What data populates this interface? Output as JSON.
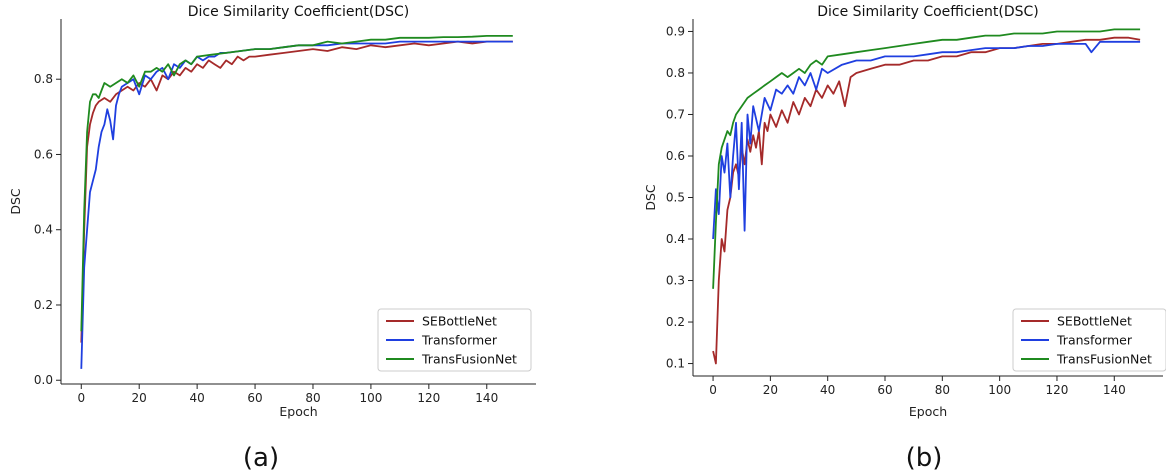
{
  "chart_data": [
    {
      "type": "line",
      "title": "Dice Similarity Coefficient(DSC)",
      "xlabel": "Epoch",
      "ylabel": "DSC",
      "caption": "(a)",
      "xlim": [
        -7,
        157
      ],
      "ylim": [
        -0.01,
        0.96
      ],
      "xticks": [
        0,
        20,
        40,
        60,
        80,
        100,
        120,
        140
      ],
      "yticks": [
        0.0,
        0.2,
        0.4,
        0.6,
        0.8
      ],
      "ytick_labels": [
        "0.0",
        "0.2",
        "0.4",
        "0.6",
        "0.8"
      ],
      "grid": false,
      "legend_position": "lower-right",
      "series": [
        {
          "name": "SEBottleNet",
          "color": "#a52a2a",
          "x": [
            0,
            1,
            2,
            3,
            4,
            5,
            6,
            8,
            10,
            12,
            14,
            16,
            18,
            20,
            22,
            24,
            26,
            28,
            30,
            32,
            34,
            36,
            38,
            40,
            42,
            44,
            46,
            48,
            50,
            52,
            54,
            56,
            58,
            60,
            65,
            70,
            75,
            80,
            85,
            90,
            95,
            100,
            105,
            110,
            115,
            120,
            125,
            130,
            135,
            140,
            145,
            149
          ],
          "y": [
            0.1,
            0.4,
            0.62,
            0.68,
            0.71,
            0.73,
            0.74,
            0.75,
            0.74,
            0.76,
            0.77,
            0.78,
            0.77,
            0.79,
            0.78,
            0.8,
            0.77,
            0.81,
            0.8,
            0.82,
            0.81,
            0.83,
            0.82,
            0.84,
            0.83,
            0.85,
            0.84,
            0.83,
            0.85,
            0.84,
            0.86,
            0.85,
            0.86,
            0.86,
            0.865,
            0.87,
            0.875,
            0.88,
            0.875,
            0.885,
            0.88,
            0.89,
            0.885,
            0.89,
            0.895,
            0.89,
            0.895,
            0.9,
            0.895,
            0.9,
            0.9,
            0.9
          ]
        },
        {
          "name": "Transformer",
          "color": "#1f3fe0",
          "x": [
            0,
            1,
            2,
            3,
            4,
            5,
            6,
            7,
            8,
            9,
            10,
            11,
            12,
            13,
            14,
            16,
            18,
            20,
            22,
            24,
            26,
            28,
            30,
            32,
            34,
            36,
            38,
            40,
            42,
            44,
            46,
            48,
            50,
            55,
            60,
            65,
            70,
            75,
            80,
            85,
            90,
            95,
            100,
            105,
            110,
            115,
            120,
            125,
            130,
            135,
            140,
            145,
            149
          ],
          "y": [
            0.03,
            0.3,
            0.4,
            0.5,
            0.53,
            0.56,
            0.62,
            0.66,
            0.68,
            0.72,
            0.69,
            0.64,
            0.73,
            0.76,
            0.78,
            0.79,
            0.8,
            0.76,
            0.81,
            0.8,
            0.82,
            0.83,
            0.8,
            0.84,
            0.83,
            0.85,
            0.84,
            0.86,
            0.85,
            0.86,
            0.86,
            0.87,
            0.87,
            0.875,
            0.88,
            0.88,
            0.885,
            0.89,
            0.89,
            0.89,
            0.895,
            0.895,
            0.895,
            0.895,
            0.9,
            0.9,
            0.9,
            0.9,
            0.9,
            0.9,
            0.9,
            0.9,
            0.9
          ]
        },
        {
          "name": "TransFusionNet",
          "color": "#1f8a1f",
          "x": [
            0,
            1,
            2,
            3,
            4,
            5,
            6,
            7,
            8,
            10,
            12,
            14,
            16,
            18,
            20,
            22,
            24,
            26,
            28,
            30,
            32,
            34,
            36,
            38,
            40,
            45,
            50,
            55,
            60,
            65,
            70,
            75,
            80,
            85,
            90,
            95,
            100,
            105,
            110,
            115,
            120,
            125,
            130,
            135,
            140,
            145,
            149
          ],
          "y": [
            0.13,
            0.45,
            0.66,
            0.74,
            0.76,
            0.76,
            0.75,
            0.77,
            0.79,
            0.78,
            0.79,
            0.8,
            0.79,
            0.81,
            0.78,
            0.82,
            0.82,
            0.83,
            0.82,
            0.84,
            0.81,
            0.84,
            0.85,
            0.84,
            0.86,
            0.865,
            0.87,
            0.875,
            0.88,
            0.88,
            0.885,
            0.89,
            0.89,
            0.9,
            0.895,
            0.9,
            0.905,
            0.905,
            0.91,
            0.91,
            0.91,
            0.912,
            0.912,
            0.913,
            0.915,
            0.915,
            0.915
          ]
        }
      ]
    },
    {
      "type": "line",
      "title": "Dice Similarity Coefficient(DSC)",
      "xlabel": "Epoch",
      "ylabel": "DSC",
      "caption": "(b)",
      "xlim": [
        -7,
        157
      ],
      "ylim": [
        0.07,
        0.93
      ],
      "xticks": [
        0,
        20,
        40,
        60,
        80,
        100,
        120,
        140
      ],
      "yticks": [
        0.1,
        0.2,
        0.3,
        0.4,
        0.5,
        0.6,
        0.7,
        0.8,
        0.9
      ],
      "ytick_labels": [
        "0.1",
        "0.2",
        "0.3",
        "0.4",
        "0.5",
        "0.6",
        "0.7",
        "0.8",
        "0.9"
      ],
      "grid": false,
      "legend_position": "lower-right",
      "series": [
        {
          "name": "SEBottleNet",
          "color": "#a52a2a",
          "x": [
            0,
            1,
            2,
            3,
            4,
            5,
            6,
            7,
            8,
            9,
            10,
            11,
            12,
            13,
            14,
            15,
            16,
            17,
            18,
            19,
            20,
            22,
            24,
            26,
            28,
            30,
            32,
            34,
            36,
            38,
            40,
            42,
            44,
            46,
            48,
            50,
            55,
            60,
            65,
            70,
            75,
            80,
            85,
            90,
            95,
            100,
            105,
            110,
            115,
            120,
            125,
            130,
            135,
            140,
            145,
            149
          ],
          "y": [
            0.13,
            0.1,
            0.3,
            0.4,
            0.37,
            0.47,
            0.5,
            0.56,
            0.58,
            0.55,
            0.62,
            0.58,
            0.64,
            0.61,
            0.65,
            0.62,
            0.66,
            0.58,
            0.68,
            0.66,
            0.7,
            0.67,
            0.71,
            0.68,
            0.73,
            0.7,
            0.74,
            0.72,
            0.76,
            0.74,
            0.77,
            0.75,
            0.78,
            0.72,
            0.79,
            0.8,
            0.81,
            0.82,
            0.82,
            0.83,
            0.83,
            0.84,
            0.84,
            0.85,
            0.85,
            0.86,
            0.86,
            0.865,
            0.87,
            0.87,
            0.875,
            0.88,
            0.88,
            0.885,
            0.885,
            0.88
          ]
        },
        {
          "name": "Transformer",
          "color": "#1f3fe0",
          "x": [
            0,
            1,
            2,
            3,
            4,
            5,
            6,
            7,
            8,
            9,
            10,
            11,
            12,
            13,
            14,
            16,
            18,
            20,
            22,
            24,
            26,
            28,
            30,
            32,
            34,
            36,
            38,
            40,
            45,
            50,
            55,
            60,
            65,
            70,
            75,
            80,
            85,
            90,
            95,
            100,
            105,
            110,
            115,
            120,
            125,
            130,
            132,
            135,
            140,
            145,
            149
          ],
          "y": [
            0.4,
            0.52,
            0.46,
            0.6,
            0.56,
            0.63,
            0.5,
            0.6,
            0.68,
            0.52,
            0.68,
            0.42,
            0.7,
            0.63,
            0.72,
            0.66,
            0.74,
            0.71,
            0.76,
            0.75,
            0.77,
            0.75,
            0.79,
            0.77,
            0.8,
            0.76,
            0.81,
            0.8,
            0.82,
            0.83,
            0.83,
            0.84,
            0.84,
            0.84,
            0.845,
            0.85,
            0.85,
            0.855,
            0.86,
            0.86,
            0.86,
            0.865,
            0.865,
            0.87,
            0.87,
            0.87,
            0.85,
            0.875,
            0.875,
            0.875,
            0.875
          ]
        },
        {
          "name": "TransFusionNet",
          "color": "#1f8a1f",
          "x": [
            0,
            1,
            2,
            3,
            4,
            5,
            6,
            7,
            8,
            10,
            12,
            14,
            16,
            18,
            20,
            22,
            24,
            26,
            28,
            30,
            32,
            34,
            36,
            38,
            40,
            45,
            50,
            55,
            60,
            65,
            70,
            75,
            80,
            85,
            90,
            95,
            100,
            105,
            110,
            115,
            120,
            125,
            130,
            135,
            140,
            145,
            149
          ],
          "y": [
            0.28,
            0.44,
            0.58,
            0.62,
            0.64,
            0.66,
            0.65,
            0.68,
            0.7,
            0.72,
            0.74,
            0.75,
            0.76,
            0.77,
            0.78,
            0.79,
            0.8,
            0.79,
            0.8,
            0.81,
            0.8,
            0.82,
            0.83,
            0.82,
            0.84,
            0.845,
            0.85,
            0.855,
            0.86,
            0.865,
            0.87,
            0.875,
            0.88,
            0.88,
            0.885,
            0.89,
            0.89,
            0.895,
            0.895,
            0.895,
            0.9,
            0.9,
            0.9,
            0.9,
            0.905,
            0.905,
            0.905
          ]
        }
      ]
    }
  ]
}
